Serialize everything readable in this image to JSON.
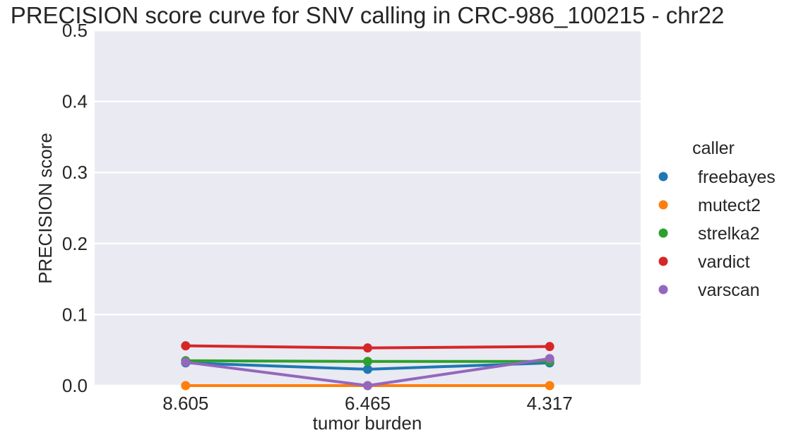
{
  "chart_data": {
    "type": "line",
    "title": "PRECISION score curve for SNV calling in CRC-986_100215 - chr22",
    "xlabel": "tumor burden",
    "ylabel": "PRECISION score",
    "categories": [
      "8.605",
      "6.465",
      "4.317"
    ],
    "ylim": [
      0,
      0.5
    ],
    "yticks": [
      0.0,
      0.1,
      0.2,
      0.3,
      0.4,
      0.5
    ],
    "ytick_labels": [
      "0.0",
      "0.1",
      "0.2",
      "0.3",
      "0.4",
      "0.5"
    ],
    "grid": true,
    "legend": {
      "title": "caller",
      "placement": "right"
    },
    "series": [
      {
        "name": "freebayes",
        "color": "#1f77b4",
        "values": [
          0.032,
          0.023,
          0.032
        ]
      },
      {
        "name": "mutect2",
        "color": "#ff7f0e",
        "values": [
          0.0,
          0.0,
          0.0
        ]
      },
      {
        "name": "strelka2",
        "color": "#2ca02c",
        "values": [
          0.035,
          0.034,
          0.034
        ]
      },
      {
        "name": "vardict",
        "color": "#d62728",
        "values": [
          0.056,
          0.053,
          0.055
        ]
      },
      {
        "name": "varscan",
        "color": "#9467bd",
        "values": [
          0.033,
          0.0,
          0.038
        ]
      }
    ]
  }
}
